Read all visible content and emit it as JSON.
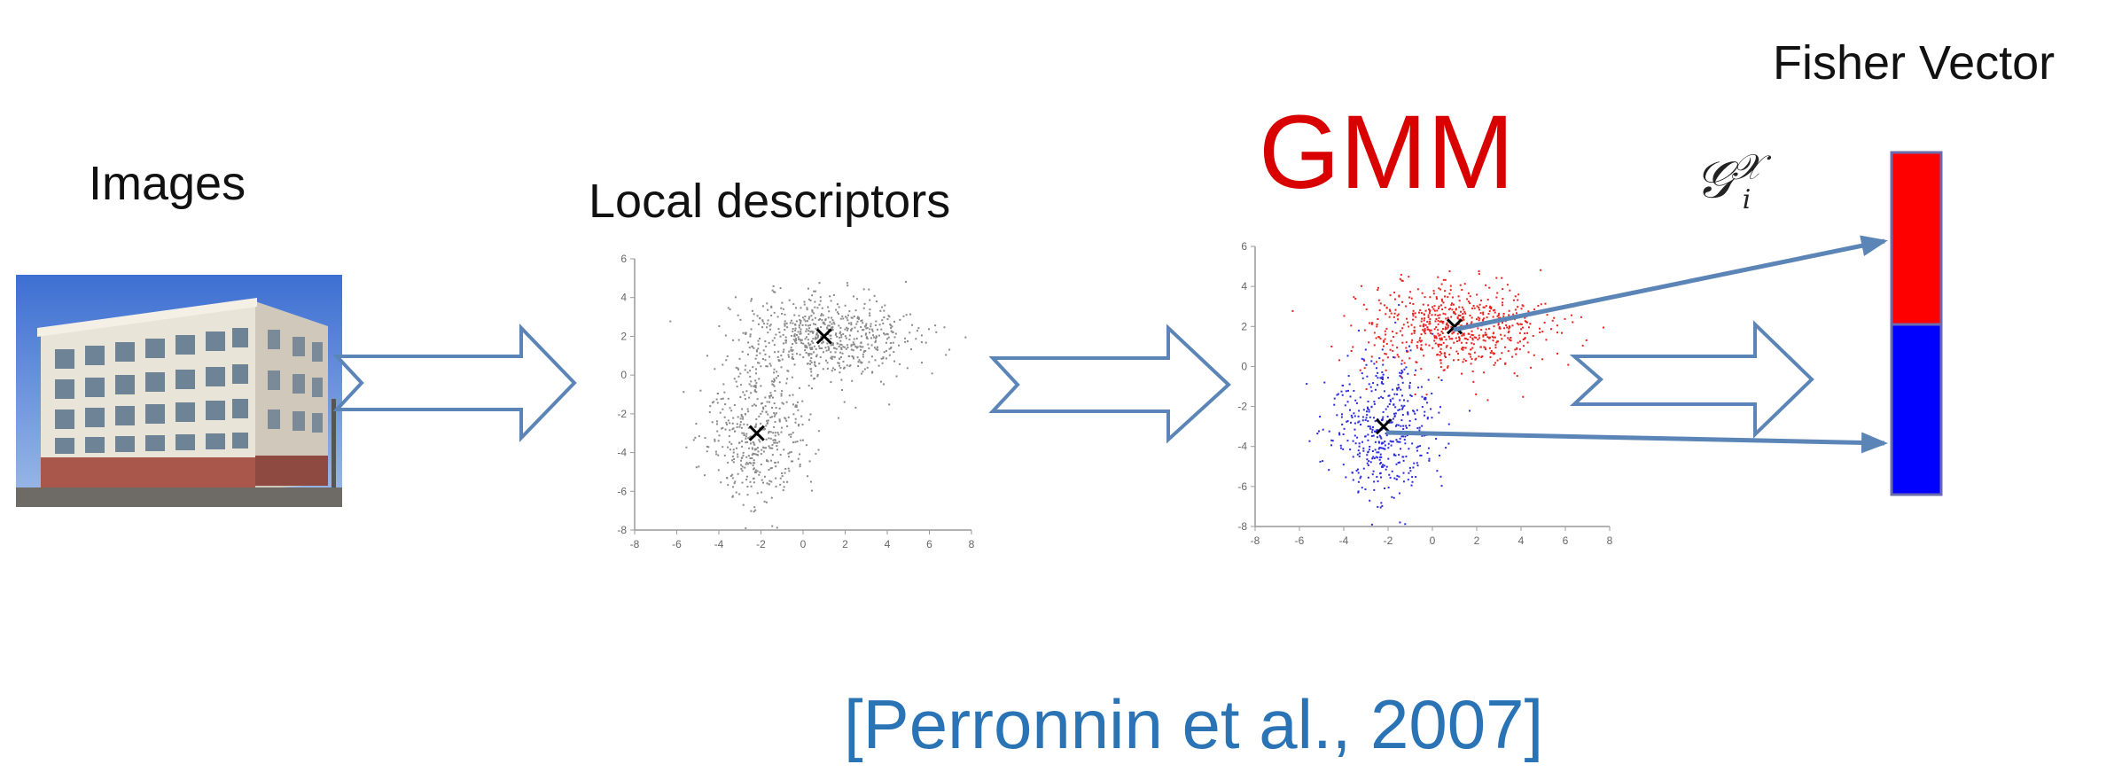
{
  "labels": {
    "images": "Images",
    "local_descriptors": "Local descriptors",
    "gmm": "GMM",
    "fisher_vector": "Fisher Vector",
    "gradient_symbol": "𝒢",
    "gradient_sub": "i",
    "gradient_sup": "𝒳",
    "citation": "[Perronnin et al., 2007]"
  },
  "colors": {
    "gmm_title": "#d90000",
    "citation": "#2a74b6",
    "arrow_stroke": "#5b85b6",
    "cluster_upper": "#e8231f",
    "cluster_lower": "#2b2bdc",
    "descriptor_points": "#8a8a8a",
    "fisher_top": "#ff0000",
    "fisher_bottom": "#0000ff"
  },
  "icons": [
    "building-photo",
    "hollow-right-arrow",
    "scatter-plot",
    "centroid-x-marker",
    "fisher-vector-bar"
  ],
  "plots": {
    "x_ticks": [
      "-8",
      "-6",
      "-4",
      "-2",
      "0",
      "2",
      "4",
      "6",
      "8"
    ],
    "y_ticks": [
      "6",
      "4",
      "2",
      "0",
      "-2",
      "-4",
      "-6",
      "-8"
    ],
    "clusters": [
      {
        "name": "upper",
        "mean": [
          1,
          2
        ],
        "spread": [
          2.1,
          1.1
        ],
        "count": 650
      },
      {
        "name": "lower",
        "mean": [
          -2.2,
          -3
        ],
        "spread": [
          1.2,
          1.8
        ],
        "count": 450
      }
    ]
  }
}
